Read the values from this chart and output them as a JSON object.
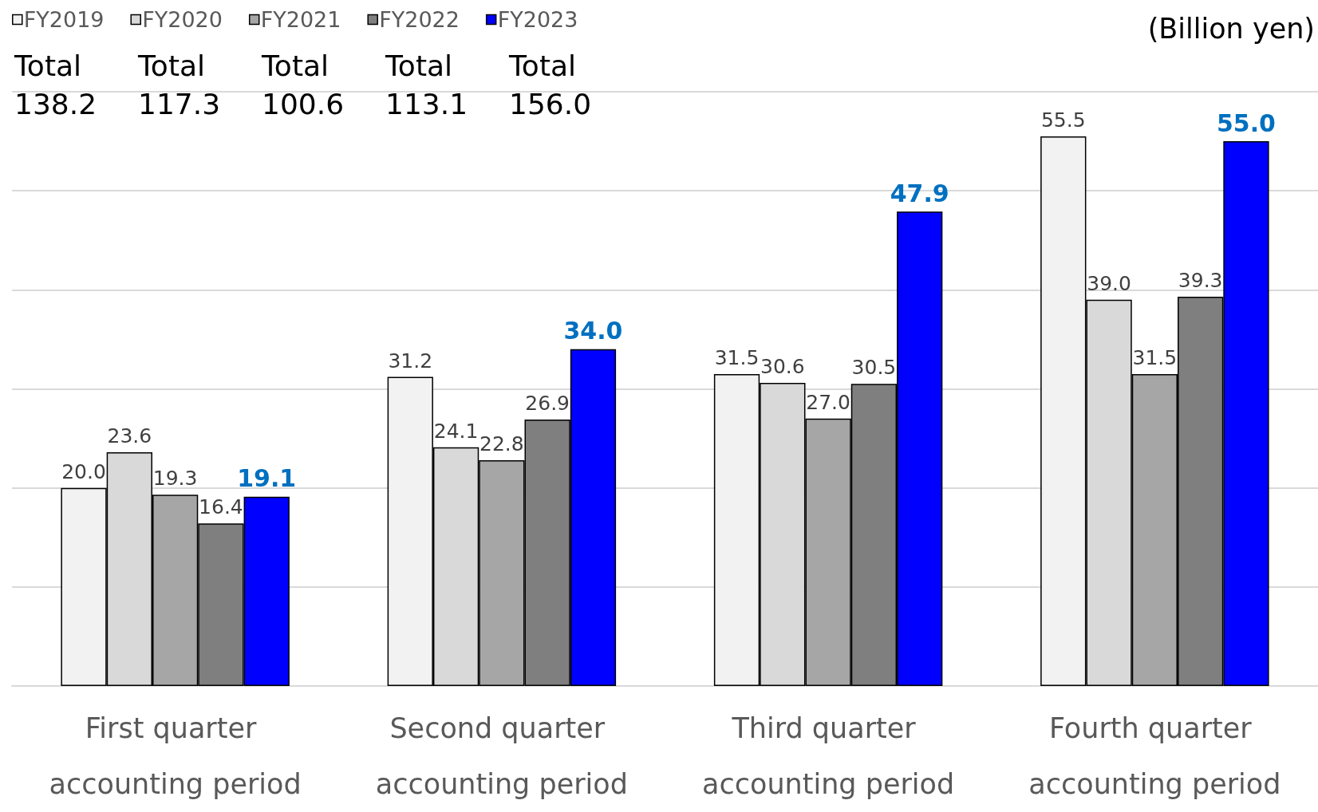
{
  "chart_data": {
    "type": "bar",
    "ylabel": "(Billion yen)",
    "categories": [
      "First quarter accounting period",
      "Second quarter accounting period",
      "Third quarter accounting period",
      "Fourth quarter accounting period"
    ],
    "series": [
      {
        "name": "FY2019",
        "color": "#f2f2f2",
        "values": [
          20.0,
          31.2,
          31.5,
          55.5
        ],
        "value_labels": [
          "20.0",
          "31.2",
          "31.5",
          "55.5"
        ]
      },
      {
        "name": "FY2020",
        "color": "#d9d9d9",
        "values": [
          23.6,
          24.1,
          30.6,
          39.0
        ],
        "value_labels": [
          "23.6",
          "24.1",
          "30.6",
          "39.0"
        ]
      },
      {
        "name": "FY2021",
        "color": "#a6a6a6",
        "values": [
          19.3,
          22.8,
          27.0,
          31.5
        ],
        "value_labels": [
          "19.3",
          "22.8",
          "27.0",
          "31.5"
        ]
      },
      {
        "name": "FY2022",
        "color": "#7f7f7f",
        "values": [
          16.4,
          26.9,
          30.5,
          39.3
        ],
        "value_labels": [
          "16.4",
          "26.9",
          "30.5",
          "39.3"
        ]
      },
      {
        "name": "FY2023",
        "color": "#0000ff",
        "values": [
          19.1,
          34.0,
          47.9,
          55.0
        ],
        "value_labels": [
          "19.1",
          "34.0",
          "47.9",
          "55.0"
        ]
      }
    ],
    "annotations": [
      "Total\n138.2",
      "Total\n117.3",
      "Total\n100.6",
      "Total\n113.1",
      "Total\n156.0"
    ],
    "ylim": [
      0,
      60
    ],
    "yticks": [
      {
        "value": 0,
        "label": null
      },
      {
        "value": 10,
        "label": null
      },
      {
        "value": 20,
        "label": null
      },
      {
        "value": 30,
        "label": null
      },
      {
        "value": 40,
        "label": null
      },
      {
        "value": 50,
        "label": null
      },
      {
        "value": 60,
        "label": null
      }
    ],
    "tick_labels": "x",
    "grid": "y",
    "legend": "top left"
  }
}
